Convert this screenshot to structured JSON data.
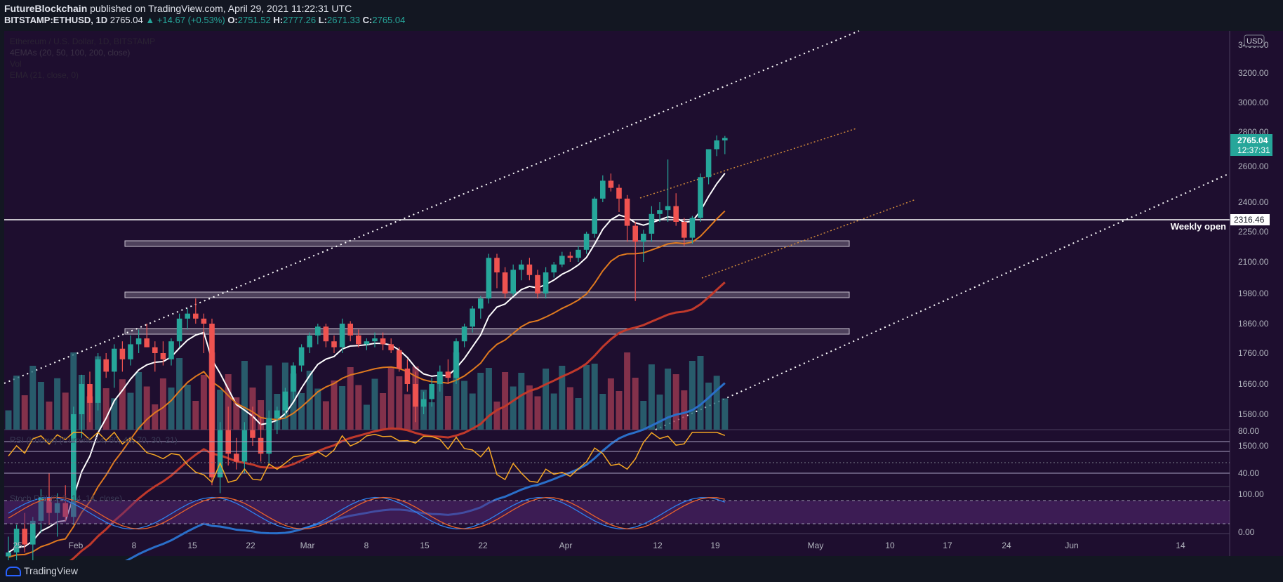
{
  "header": {
    "author": "FutureBlockchain",
    "published_text": "published on TradingView.com, April 29, 2021 11:22:31 UTC",
    "symbol": "BITSTAMP:ETHUSD, 1D",
    "last": "2765.04",
    "change": "▲ +14.67 (+0.53%)",
    "o_label": "O:",
    "o_value": "2751.52",
    "h_label": "H:",
    "h_value": "2777.26",
    "l_label": "L:",
    "l_value": "2671.33",
    "c_label": "C:",
    "c_value": "2765.04"
  },
  "legend": {
    "title": "Ethereum / U.S. Dollar, 1D, BITSTAMP",
    "emas": "4EMAs (20, 50, 100, 200, close)",
    "vol": "Vol",
    "ema21": "EMA (21, close, 0)",
    "rsi": "RSI (Kocow) (Current, 14, 60, 40, 70, 30, 21)",
    "stoch": "Stoch RSI (3, 3, 14, 14, close)"
  },
  "currency_badge": "USD",
  "price_label": {
    "price": "2765.04",
    "countdown": "12:37:31"
  },
  "weekly_open": {
    "label": "Weekly open",
    "value": "2316.46"
  },
  "footer": {
    "brand": "TradingView"
  },
  "colors": {
    "background": "#1e0e2f",
    "up": "#26a69a",
    "down": "#ef5350",
    "ema20": "#ffffff",
    "ema50": "#e07a1f",
    "ema100": "#c0392b",
    "ema200": "#2a6fc9",
    "rsi": "#f5a623",
    "rsi_fill": "#7cb342",
    "stoch_k": "#2f80ed",
    "stoch_d": "#e8622c"
  },
  "chart_data": {
    "type": "candlestick",
    "price_axis_ticks": [
      "3400.00",
      "3200.00",
      "3000.00",
      "2800.00",
      "2600.00",
      "2400.00",
      "2250.00",
      "2100.00",
      "1980.00",
      "1860.00",
      "1760.00",
      "1660.00",
      "1580.00",
      "1500.00"
    ],
    "rsi_axis_ticks": [
      "80.00",
      "40.00"
    ],
    "stoch_axis_ticks": [
      "100.00",
      "0.00"
    ],
    "time_axis_ticks": [
      "25",
      "Feb",
      "8",
      "15",
      "22",
      "Mar",
      "8",
      "15",
      "22",
      "Apr",
      "12",
      "19",
      "May",
      "10",
      "17",
      "24",
      "Jun",
      "14"
    ],
    "ohlc": [
      [
        1220,
        1270,
        1180,
        1230
      ],
      [
        1230,
        1300,
        1200,
        1290
      ],
      [
        1290,
        1330,
        1230,
        1250
      ],
      [
        1250,
        1320,
        1200,
        1310
      ],
      [
        1310,
        1390,
        1280,
        1370
      ],
      [
        1370,
        1430,
        1300,
        1330
      ],
      [
        1330,
        1380,
        1270,
        1355
      ],
      [
        1355,
        1400,
        1310,
        1320
      ],
      [
        1320,
        1600,
        1300,
        1580
      ],
      [
        1580,
        1690,
        1520,
        1660
      ],
      [
        1660,
        1700,
        1560,
        1610
      ],
      [
        1610,
        1760,
        1590,
        1740
      ],
      [
        1740,
        1760,
        1680,
        1700
      ],
      [
        1700,
        1790,
        1650,
        1775
      ],
      [
        1775,
        1800,
        1700,
        1740
      ],
      [
        1740,
        1820,
        1720,
        1790
      ],
      [
        1790,
        1840,
        1760,
        1810
      ],
      [
        1810,
        1860,
        1780,
        1780
      ],
      [
        1780,
        1800,
        1700,
        1760
      ],
      [
        1760,
        1800,
        1720,
        1740
      ],
      [
        1740,
        1810,
        1720,
        1800
      ],
      [
        1800,
        1900,
        1780,
        1880
      ],
      [
        1880,
        1920,
        1840,
        1900
      ],
      [
        1900,
        1960,
        1860,
        1880
      ],
      [
        1880,
        1900,
        1760,
        1860
      ],
      [
        1860,
        1880,
        1400,
        1420
      ],
      [
        1420,
        1560,
        1380,
        1540
      ],
      [
        1540,
        1600,
        1450,
        1480
      ],
      [
        1480,
        1520,
        1440,
        1460
      ],
      [
        1460,
        1560,
        1430,
        1540
      ],
      [
        1540,
        1600,
        1500,
        1520
      ],
      [
        1520,
        1570,
        1460,
        1480
      ],
      [
        1480,
        1590,
        1450,
        1570
      ],
      [
        1570,
        1600,
        1530,
        1590
      ],
      [
        1590,
        1650,
        1570,
        1640
      ],
      [
        1640,
        1730,
        1620,
        1720
      ],
      [
        1720,
        1790,
        1700,
        1780
      ],
      [
        1780,
        1830,
        1760,
        1820
      ],
      [
        1820,
        1860,
        1790,
        1850
      ],
      [
        1850,
        1860,
        1780,
        1800
      ],
      [
        1800,
        1820,
        1760,
        1780
      ],
      [
        1780,
        1880,
        1760,
        1860
      ],
      [
        1860,
        1870,
        1800,
        1820
      ],
      [
        1820,
        1840,
        1780,
        1790
      ],
      [
        1790,
        1810,
        1770,
        1800
      ],
      [
        1800,
        1830,
        1780,
        1810
      ],
      [
        1810,
        1830,
        1770,
        1790
      ],
      [
        1790,
        1810,
        1760,
        1770
      ],
      [
        1770,
        1780,
        1700,
        1710
      ],
      [
        1710,
        1740,
        1640,
        1660
      ],
      [
        1660,
        1700,
        1560,
        1600
      ],
      [
        1600,
        1640,
        1580,
        1620
      ],
      [
        1620,
        1680,
        1600,
        1660
      ],
      [
        1660,
        1720,
        1640,
        1700
      ],
      [
        1700,
        1740,
        1660,
        1680
      ],
      [
        1680,
        1810,
        1660,
        1800
      ],
      [
        1800,
        1860,
        1780,
        1850
      ],
      [
        1850,
        1930,
        1830,
        1920
      ],
      [
        1920,
        1970,
        1880,
        1960
      ],
      [
        1960,
        2140,
        1940,
        2120
      ],
      [
        2120,
        2140,
        2000,
        2060
      ],
      [
        2060,
        2080,
        1960,
        1980
      ],
      [
        1980,
        2090,
        1970,
        2070
      ],
      [
        2070,
        2110,
        2030,
        2090
      ],
      [
        2090,
        2120,
        2030,
        2050
      ],
      [
        2050,
        2070,
        1960,
        1980
      ],
      [
        1980,
        2080,
        1960,
        2060
      ],
      [
        2060,
        2100,
        2040,
        2090
      ],
      [
        2090,
        2150,
        2080,
        2130
      ],
      [
        2130,
        2150,
        2100,
        2120
      ],
      [
        2120,
        2180,
        2100,
        2160
      ],
      [
        2160,
        2250,
        2140,
        2240
      ],
      [
        2240,
        2430,
        2220,
        2420
      ],
      [
        2420,
        2550,
        2400,
        2520
      ],
      [
        2520,
        2560,
        2460,
        2480
      ],
      [
        2480,
        2500,
        2350,
        2420
      ],
      [
        2420,
        2440,
        2200,
        2280
      ],
      [
        2280,
        2300,
        1950,
        2200
      ],
      [
        2200,
        2260,
        2100,
        2240
      ],
      [
        2240,
        2380,
        2200,
        2340
      ],
      [
        2340,
        2400,
        2300,
        2360
      ],
      [
        2360,
        2640,
        2300,
        2380
      ],
      [
        2380,
        2450,
        2280,
        2300
      ],
      [
        2300,
        2320,
        2180,
        2220
      ],
      [
        2220,
        2330,
        2190,
        2320
      ],
      [
        2320,
        2560,
        2300,
        2540
      ],
      [
        2540,
        2700,
        2500,
        2700
      ],
      [
        2700,
        2780,
        2660,
        2751
      ],
      [
        2751,
        2777,
        2671,
        2765
      ]
    ],
    "lines": [
      {
        "name": "Weekly open",
        "value": 2316.46
      }
    ]
  }
}
